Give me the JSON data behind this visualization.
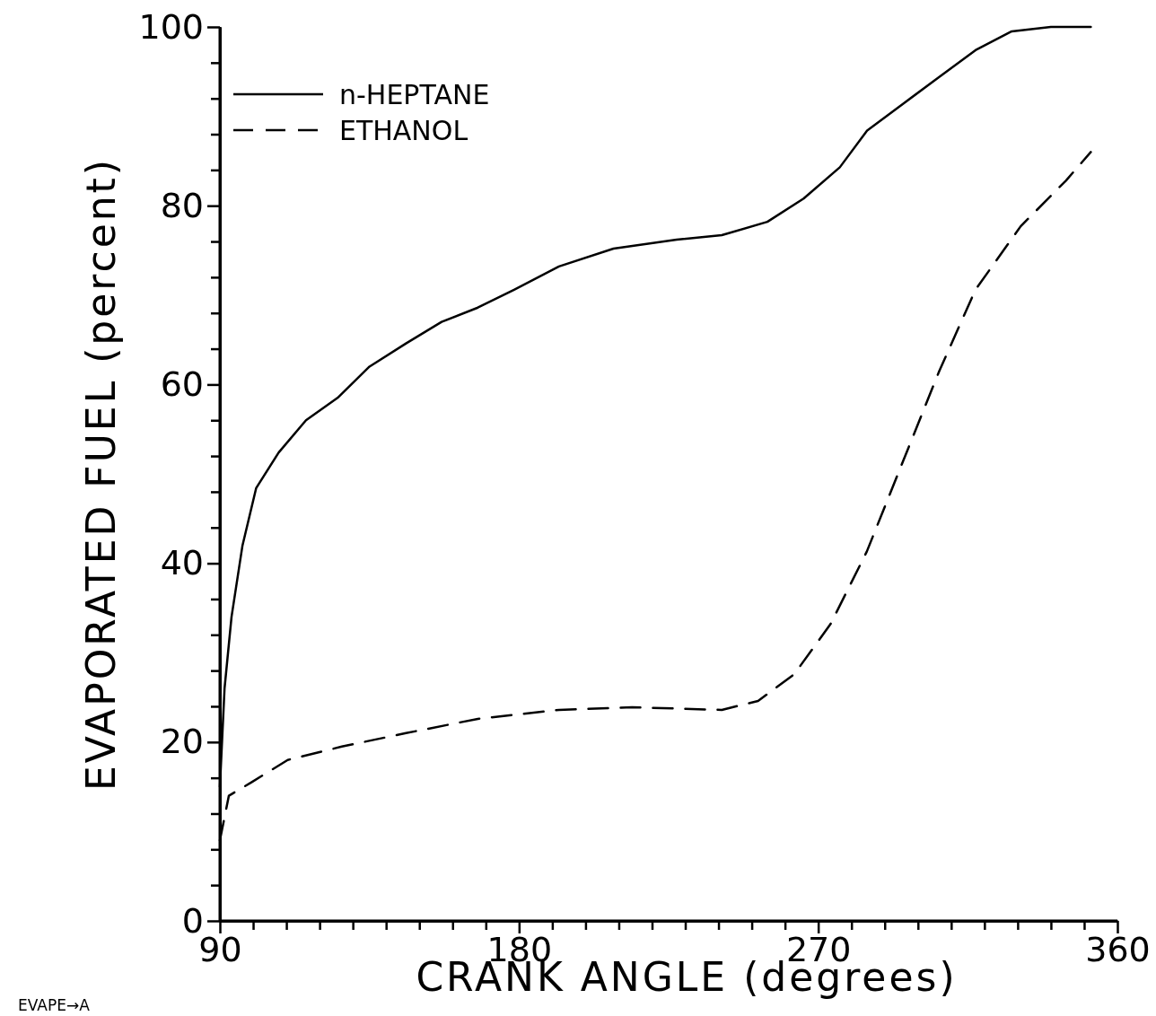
{
  "chart_data": {
    "type": "line",
    "xlabel": "CRANK ANGLE (degrees)",
    "ylabel": "EVAPORATED FUEL (percent)",
    "xlim": [
      90,
      360
    ],
    "ylim": [
      0,
      100
    ],
    "xticks": [
      90,
      {
        "value": 100,
        "label": null
      },
      {
        "value": 110,
        "label": null
      },
      {
        "value": 120,
        "label": null
      },
      {
        "value": 130,
        "label": null
      },
      {
        "value": 140,
        "label": null
      },
      {
        "value": 150,
        "label": null
      },
      {
        "value": 160,
        "label": null
      },
      {
        "value": 170,
        "label": null
      },
      180,
      {
        "value": 190,
        "label": null
      },
      {
        "value": 200,
        "label": null
      },
      {
        "value": 210,
        "label": null
      },
      {
        "value": 220,
        "label": null
      },
      {
        "value": 230,
        "label": null
      },
      {
        "value": 240,
        "label": null
      },
      {
        "value": 250,
        "label": null
      },
      {
        "value": 260,
        "label": null
      },
      270,
      {
        "value": 280,
        "label": null
      },
      {
        "value": 290,
        "label": null
      },
      {
        "value": 300,
        "label": null
      },
      {
        "value": 310,
        "label": null
      },
      {
        "value": 320,
        "label": null
      },
      {
        "value": 330,
        "label": null
      },
      {
        "value": 340,
        "label": null
      },
      {
        "value": 350,
        "label": null
      },
      360
    ],
    "yticks": [
      0,
      {
        "value": 4,
        "label": null
      },
      {
        "value": 8,
        "label": null
      },
      {
        "value": 12,
        "label": null
      },
      {
        "value": 16,
        "label": null
      },
      20,
      {
        "value": 24,
        "label": null
      },
      {
        "value": 28,
        "label": null
      },
      {
        "value": 32,
        "label": null
      },
      {
        "value": 36,
        "label": null
      },
      40,
      {
        "value": 44,
        "label": null
      },
      {
        "value": 48,
        "label": null
      },
      {
        "value": 52,
        "label": null
      },
      {
        "value": 56,
        "label": null
      },
      60,
      {
        "value": 64,
        "label": null
      },
      {
        "value": 68,
        "label": null
      },
      {
        "value": 72,
        "label": null
      },
      {
        "value": 76,
        "label": null
      },
      80,
      {
        "value": 84,
        "label": null
      },
      {
        "value": 88,
        "label": null
      },
      {
        "value": 92,
        "label": null
      },
      {
        "value": 96,
        "label": null
      },
      100
    ],
    "legend": "top left",
    "grid": false,
    "annotations": [
      "EVAPE→A"
    ],
    "series": [
      {
        "name": "n-HEPTANE",
        "color": "#000000",
        "line_style": "solid",
        "x": [
          90,
          91.4,
          93.5,
          96.8,
          100.9,
          107.7,
          115.9,
          125.4,
          135,
          146,
          156.7,
          167.6,
          178.5,
          192,
          208.4,
          227.4,
          241,
          254.7,
          265.6,
          276.5,
          284.7,
          295.5,
          306.4,
          317.3,
          328.2,
          340,
          352
        ],
        "values": [
          15,
          26,
          34,
          42,
          48.4,
          52.4,
          56,
          58.5,
          62,
          64.6,
          67,
          68.6,
          70.6,
          73.2,
          75.2,
          76.2,
          76.7,
          78.2,
          80.8,
          84.3,
          88.4,
          91.4,
          94.4,
          97.4,
          99.5,
          100,
          100
        ]
      },
      {
        "name": "ETHANOL",
        "color": "#000000",
        "line_style": "dashed",
        "x": [
          90,
          92.7,
          99.5,
          110.4,
          126.7,
          146,
          167.6,
          192,
          214,
          241,
          251.9,
          262.8,
          273.7,
          284.6,
          295.5,
          306.4,
          317.3,
          330.9,
          344.5,
          352
        ],
        "values": [
          9,
          14,
          15.5,
          18,
          19.5,
          21,
          22.6,
          23.6,
          23.9,
          23.6,
          24.6,
          27.6,
          33.2,
          41.3,
          51.4,
          61.5,
          70.6,
          77.7,
          82.8,
          86
        ]
      }
    ]
  }
}
